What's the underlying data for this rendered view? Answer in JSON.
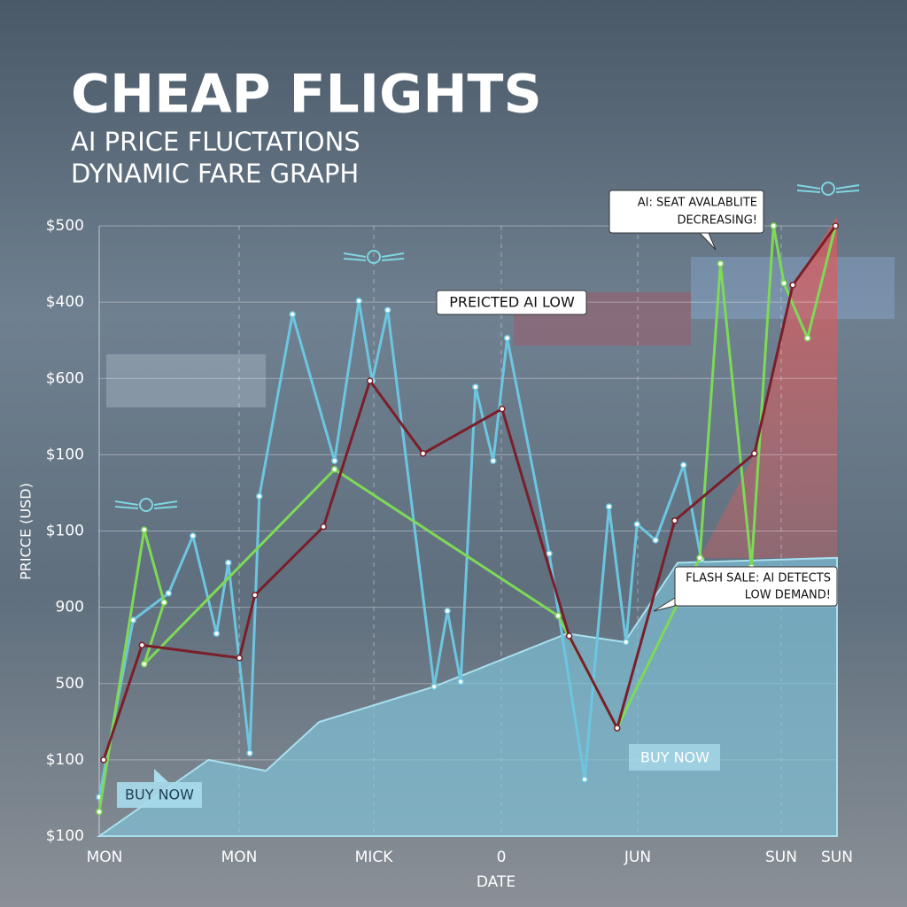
{
  "chart_data": {
    "type": "line",
    "title": "CHEAP FLIGHTS",
    "subtitle": [
      "AI PRICE FLUCTATIONS",
      "DYNAMIC FARE GRAPH"
    ],
    "y_axis_label": "PRICCE (USD)",
    "x_axis_label": "DATE",
    "y_axis_labels": [
      "$500",
      "$400",
      "$600",
      "$100",
      "$100",
      "900",
      "500",
      "$100",
      "$100"
    ],
    "x_axis_labels": [
      "MON",
      "MON",
      "MICK",
      "0",
      "JUN",
      "SUN",
      "SUN"
    ],
    "xlim": [
      0,
      100
    ],
    "ylim": [
      0,
      100
    ],
    "grid": true,
    "annotations": [
      {
        "text": [
          "PREICTED AI LOW"
        ]
      },
      {
        "text": [
          "AI: SEAT AVALABLITE",
          "DECREASING!"
        ]
      },
      {
        "text": [
          "FLASH SALE: AI DETECTS",
          "LOW DEMAND!"
        ]
      },
      {
        "text": [
          "BUY NOW"
        ]
      },
      {
        "text": [
          "BUY NOW"
        ]
      }
    ],
    "area": {
      "color": "#7fc4dc",
      "x": [
        0,
        14.8,
        22.6,
        29.8,
        45.4,
        63.4,
        71.2,
        78.4,
        100
      ],
      "values": [
        0,
        12.5,
        10.7,
        18.7,
        24.5,
        33.2,
        31.8,
        44.8,
        45.6
      ]
    },
    "series": [
      {
        "color": "#6cc6e0",
        "x": [
          0,
          4.6,
          9.4,
          12.7,
          15.9,
          17.5,
          20.4,
          21.7,
          26.2,
          31.9,
          35.2,
          37.0,
          39.1,
          45.4,
          47.2,
          49.0,
          51.0,
          53.4,
          55.3,
          61.0,
          65.8,
          69.1,
          71.4,
          72.9,
          75.4,
          79.2,
          81.6
        ],
        "values": [
          6.4,
          35.4,
          39.8,
          49.2,
          33.2,
          44.8,
          13.6,
          55.7,
          85.5,
          61.5,
          87.7,
          74.6,
          86.2,
          24.5,
          36.9,
          25.3,
          73.6,
          61.5,
          81.6,
          46.3,
          9.3,
          54.0,
          31.8,
          51.1,
          48.5,
          60.8,
          45.3
        ]
      },
      {
        "color": "#7ed957",
        "x": [
          0,
          6.1,
          8.8,
          6.1,
          31.9,
          62.2,
          70.2,
          81.4,
          84.2,
          88.4,
          91.4,
          92.8,
          96.0,
          99.8
        ],
        "values": [
          4,
          50.2,
          38.3,
          28.2,
          60.1,
          36.1,
          17.7,
          45.6,
          93.8,
          44.1,
          100,
          90.6,
          81.6,
          100
        ]
      },
      {
        "color": "#7a1f2a",
        "x": [
          0.6,
          5.8,
          19.0,
          21.1,
          30.4,
          36.7,
          43.9,
          54.6,
          63.7,
          70.2,
          78.0,
          88.8,
          94.0,
          99.8
        ],
        "values": [
          12.5,
          31.3,
          29.2,
          39.5,
          50.7,
          74.6,
          62.7,
          70.0,
          32.8,
          17.7,
          51.7,
          62.7,
          90.3,
          100
        ]
      }
    ]
  }
}
